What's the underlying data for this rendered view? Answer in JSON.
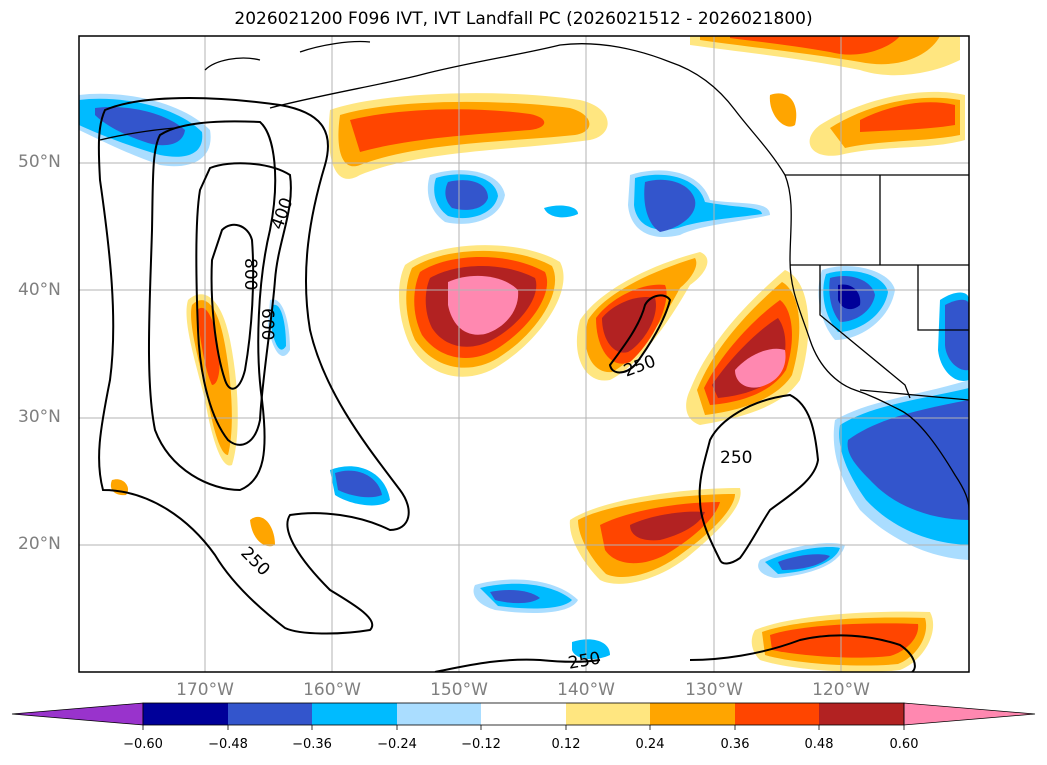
{
  "title": "2026021200 F096 IVT, IVT Landfall PC (2026021512 - 2026021800)",
  "lat_labels": [
    "50°N",
    "40°N",
    "30°N",
    "20°N"
  ],
  "lon_labels": [
    "170°W",
    "160°W",
    "150°W",
    "140°W",
    "130°W",
    "120°W"
  ],
  "contour_labels": [
    "800",
    "600",
    "400",
    "250",
    "250",
    "250",
    "250"
  ],
  "colorbar": {
    "ticks": [
      "−0.60",
      "−0.48",
      "−0.36",
      "−0.24",
      "−0.12",
      "0.12",
      "0.24",
      "0.36",
      "0.48",
      "0.60"
    ],
    "colors": [
      "#9933cc",
      "#000099",
      "#3355cc",
      "#00bbff",
      "#aaddff",
      "#ffffff",
      "#ffe680",
      "#ffa500",
      "#ff4500",
      "#b22222",
      "#ff88b0"
    ]
  },
  "colors": {
    "neg_strong": "#000099",
    "neg_mid": "#3355cc",
    "neg_light": "#00bbff",
    "neg_faint": "#aaddff",
    "pos_faint": "#ffe680",
    "pos_light": "#ffa500",
    "pos_mid": "#ff4500",
    "pos_strong": "#b22222",
    "pos_max": "#ff88b0"
  }
}
